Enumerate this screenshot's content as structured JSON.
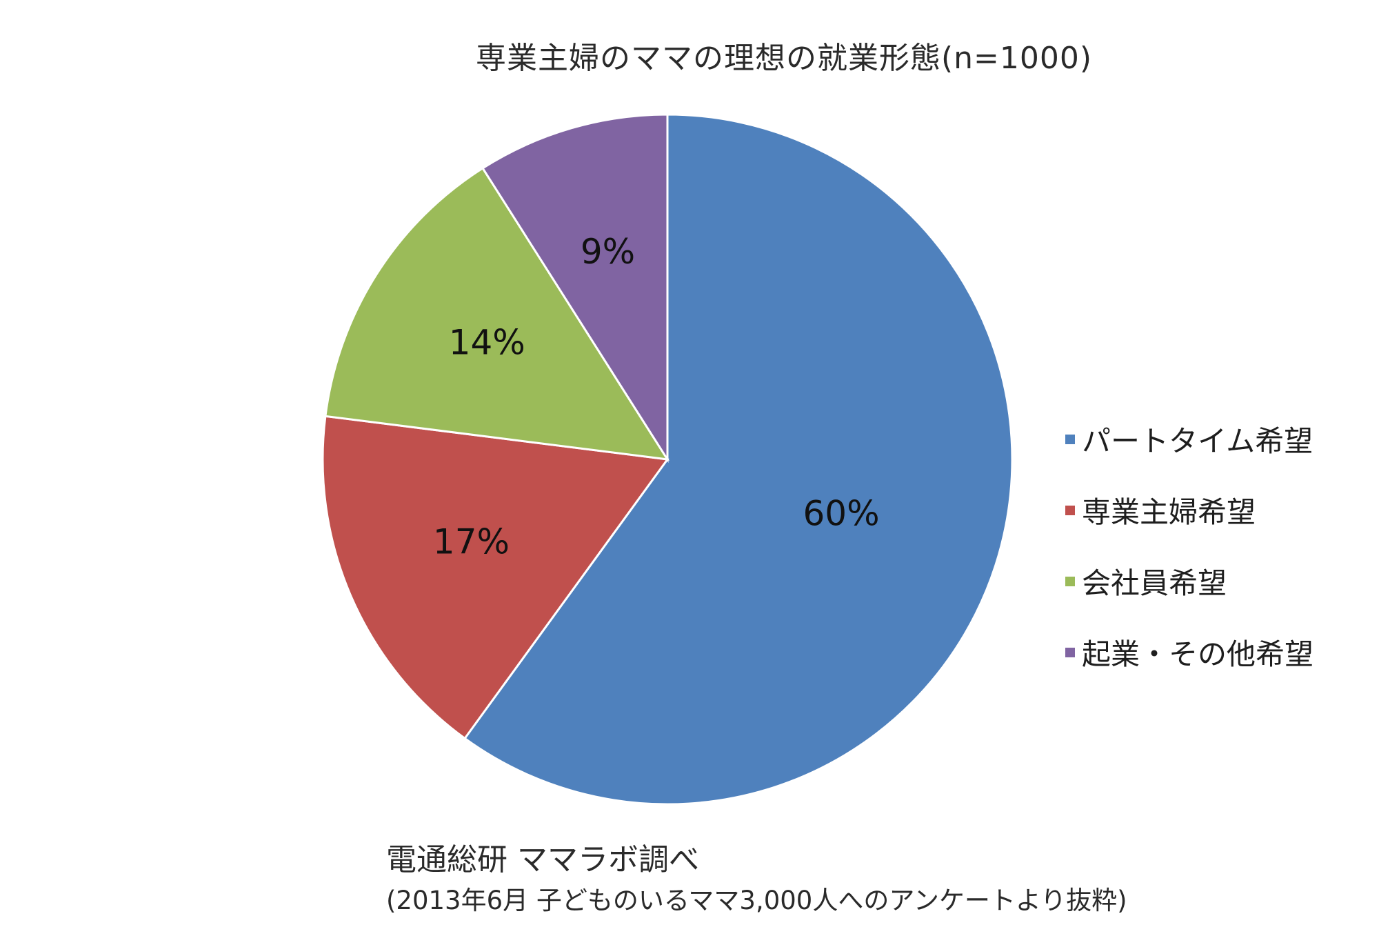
{
  "chart_data": {
    "type": "pie",
    "title": "専業主婦のママの理想の就業形態(n=1000)",
    "start_angle_deg": 0,
    "direction": "clockwise",
    "slices": [
      {
        "label": "パートタイム希望",
        "value": 60,
        "display": "60%",
        "color": "#4f81bd"
      },
      {
        "label": "専業主婦希望",
        "value": 17,
        "display": "17%",
        "color": "#c0504d"
      },
      {
        "label": "会社員希望",
        "value": 14,
        "display": "14%",
        "color": "#9bbb59"
      },
      {
        "label": "起業・その他希望",
        "value": 9,
        "display": "9%",
        "color": "#8064a2"
      }
    ],
    "legend_position": "right"
  },
  "source": {
    "line1": "電通総研 ママラボ調べ",
    "line2": "(2013年6月 子どものいるママ3,000人へのアンケートより抜粋)"
  }
}
